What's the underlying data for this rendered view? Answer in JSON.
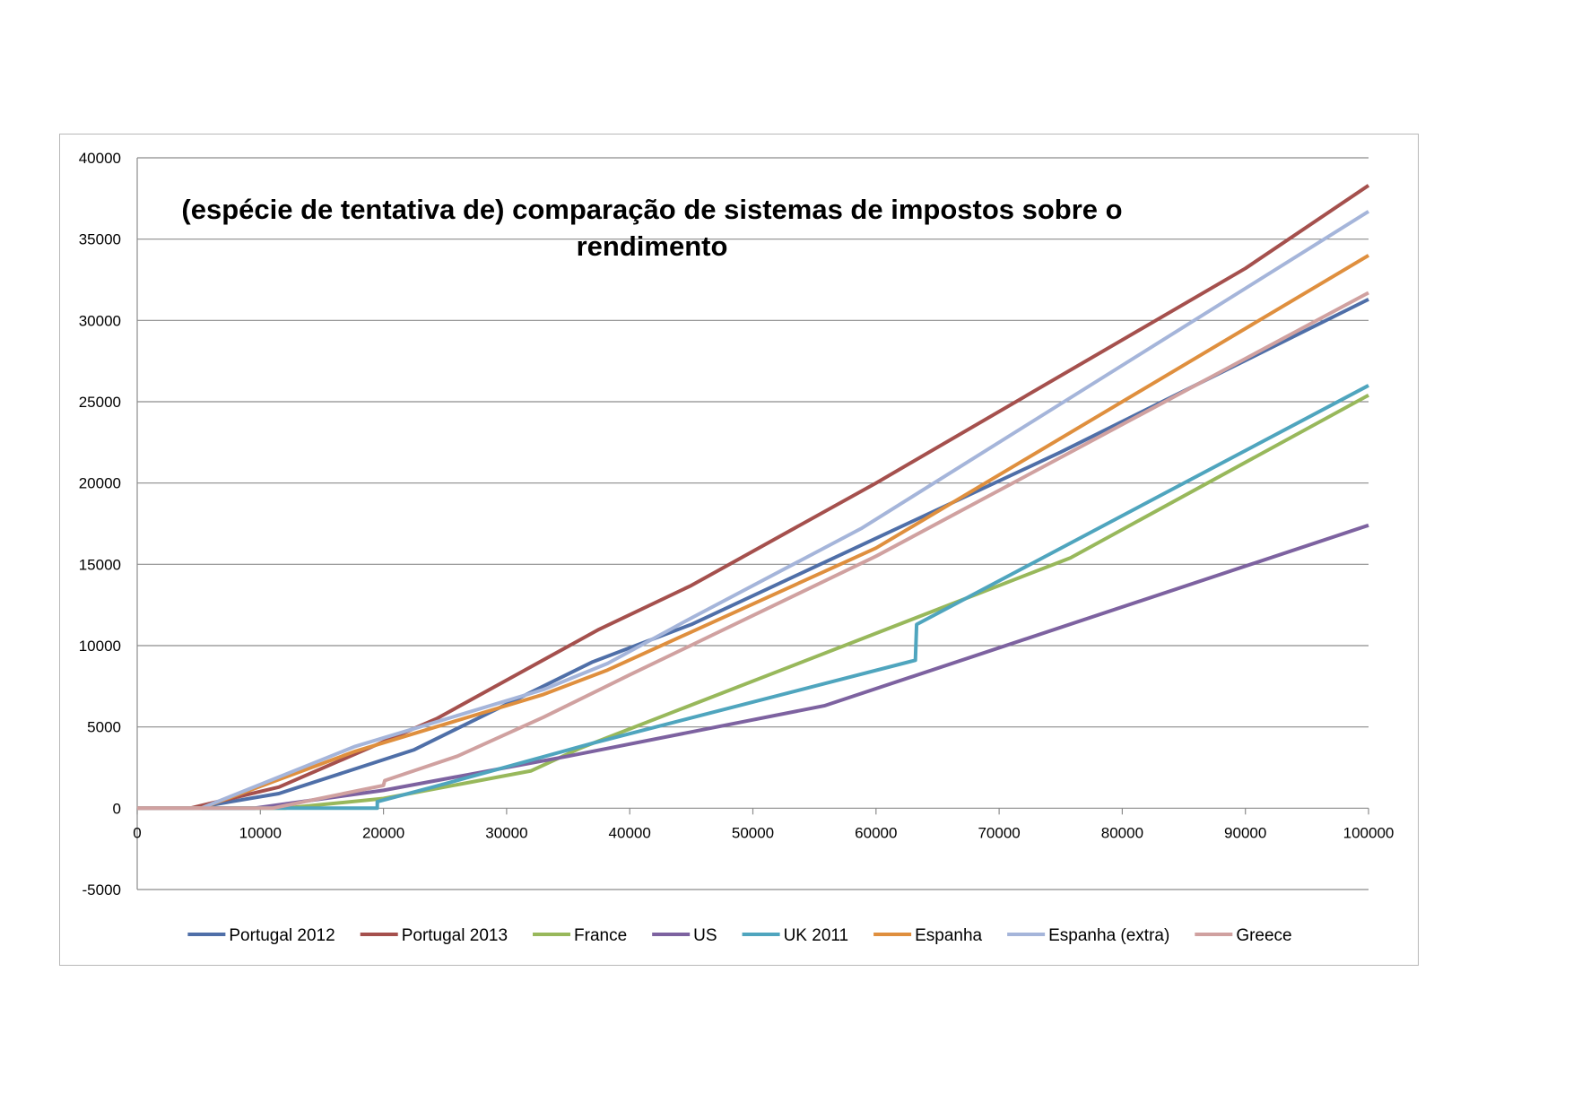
{
  "chart_data": {
    "type": "line",
    "title_lines": [
      "(espécie de tentativa de) comparação de sistemas de impostos sobre o",
      "rendimento"
    ],
    "xlabel": "",
    "ylabel": "",
    "xlim": [
      0,
      100000
    ],
    "ylim": [
      -5000,
      40000
    ],
    "x_ticks": [
      0,
      10000,
      20000,
      30000,
      40000,
      50000,
      60000,
      70000,
      80000,
      90000,
      100000
    ],
    "x_tick_labels": [
      "0",
      "10000",
      "20000",
      "30000",
      "40000",
      "50000",
      "60000",
      "70000",
      "80000",
      "90000",
      "100000"
    ],
    "y_ticks": [
      -5000,
      0,
      5000,
      10000,
      15000,
      20000,
      25000,
      30000,
      35000,
      40000
    ],
    "y_tick_labels": [
      "-5000",
      "0",
      "5000",
      "10000",
      "15000",
      "20000",
      "25000",
      "30000",
      "35000",
      "40000"
    ],
    "grid": "horizontal",
    "legend_position": "bottom",
    "series": [
      {
        "name": "Portugal 2012",
        "color": "#4F6FA8",
        "points": [
          [
            0,
            0
          ],
          [
            4500,
            0
          ],
          [
            11500,
            900
          ],
          [
            22500,
            3600
          ],
          [
            37000,
            9000
          ],
          [
            45000,
            11300
          ],
          [
            75000,
            21900
          ],
          [
            100000,
            31300
          ]
        ]
      },
      {
        "name": "Portugal 2013",
        "color": "#A5504D",
        "points": [
          [
            0,
            0
          ],
          [
            4300,
            0
          ],
          [
            11500,
            1300
          ],
          [
            24300,
            5500
          ],
          [
            37500,
            11000
          ],
          [
            45000,
            13700
          ],
          [
            60000,
            20000
          ],
          [
            90000,
            33200
          ],
          [
            100000,
            38300
          ]
        ]
      },
      {
        "name": "France",
        "color": "#98B85B",
        "points": [
          [
            0,
            0
          ],
          [
            12000,
            0
          ],
          [
            20000,
            600
          ],
          [
            32000,
            2300
          ],
          [
            36000,
            3700
          ],
          [
            75800,
            15400
          ],
          [
            100000,
            25400
          ]
        ]
      },
      {
        "name": "US",
        "color": "#7D62A0",
        "points": [
          [
            0,
            0
          ],
          [
            9500,
            0
          ],
          [
            20000,
            1100
          ],
          [
            35000,
            3200
          ],
          [
            55800,
            6300
          ],
          [
            100000,
            17400
          ]
        ]
      },
      {
        "name": "UK 2011",
        "color": "#4FA5BE",
        "points": [
          [
            0,
            0
          ],
          [
            19500,
            0
          ],
          [
            19500,
            400
          ],
          [
            24000,
            1300
          ],
          [
            37000,
            4000
          ],
          [
            63200,
            9100
          ],
          [
            63300,
            11300
          ],
          [
            100000,
            26000
          ]
        ]
      },
      {
        "name": "Espanha",
        "color": "#DF8F3E",
        "points": [
          [
            0,
            0
          ],
          [
            5200,
            0
          ],
          [
            17700,
            3500
          ],
          [
            33000,
            7000
          ],
          [
            38200,
            8500
          ],
          [
            60000,
            16000
          ],
          [
            100000,
            34000
          ]
        ]
      },
      {
        "name": "Espanha (extra)",
        "color": "#A5B5DA",
        "points": [
          [
            0,
            0
          ],
          [
            5200,
            0
          ],
          [
            17700,
            3800
          ],
          [
            33000,
            7300
          ],
          [
            38200,
            8900
          ],
          [
            45000,
            11700
          ],
          [
            58800,
            17200
          ],
          [
            100000,
            36700
          ]
        ]
      },
      {
        "name": "Greece",
        "color": "#D0A1A0",
        "points": [
          [
            0,
            0
          ],
          [
            11000,
            0
          ],
          [
            20000,
            1400
          ],
          [
            20100,
            1700
          ],
          [
            26000,
            3200
          ],
          [
            33000,
            5600
          ],
          [
            40000,
            8200
          ],
          [
            60000,
            15500
          ],
          [
            100000,
            31700
          ]
        ]
      }
    ]
  }
}
